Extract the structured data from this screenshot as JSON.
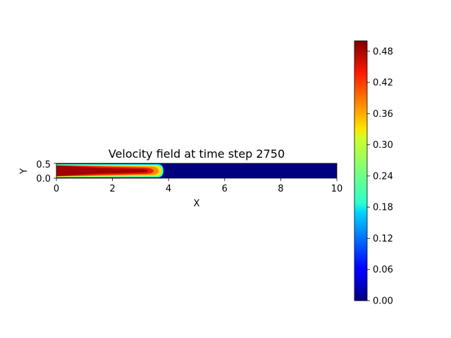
{
  "chart_data": {
    "type": "heatmap",
    "title": "Velocity field at time step 2750",
    "xlabel": "X",
    "ylabel": "Y",
    "xlim": [
      0,
      10
    ],
    "ylim": [
      0,
      0.5
    ],
    "xticks": [
      "0",
      "2",
      "4",
      "6",
      "8",
      "10"
    ],
    "yticks": [
      "0.0",
      "0.5"
    ],
    "colormap": "jet",
    "colorbar": {
      "range": [
        0,
        0.5
      ],
      "ticks": [
        "0.00",
        "0.06",
        "0.12",
        "0.18",
        "0.24",
        "0.30",
        "0.36",
        "0.42",
        "0.48"
      ]
    },
    "field": {
      "description_values": {
        "channel_length": 10,
        "channel_height": 0.5,
        "jet_front_x": 3.8,
        "max_velocity": 0.5,
        "background_velocity": 0.0
      }
    }
  }
}
